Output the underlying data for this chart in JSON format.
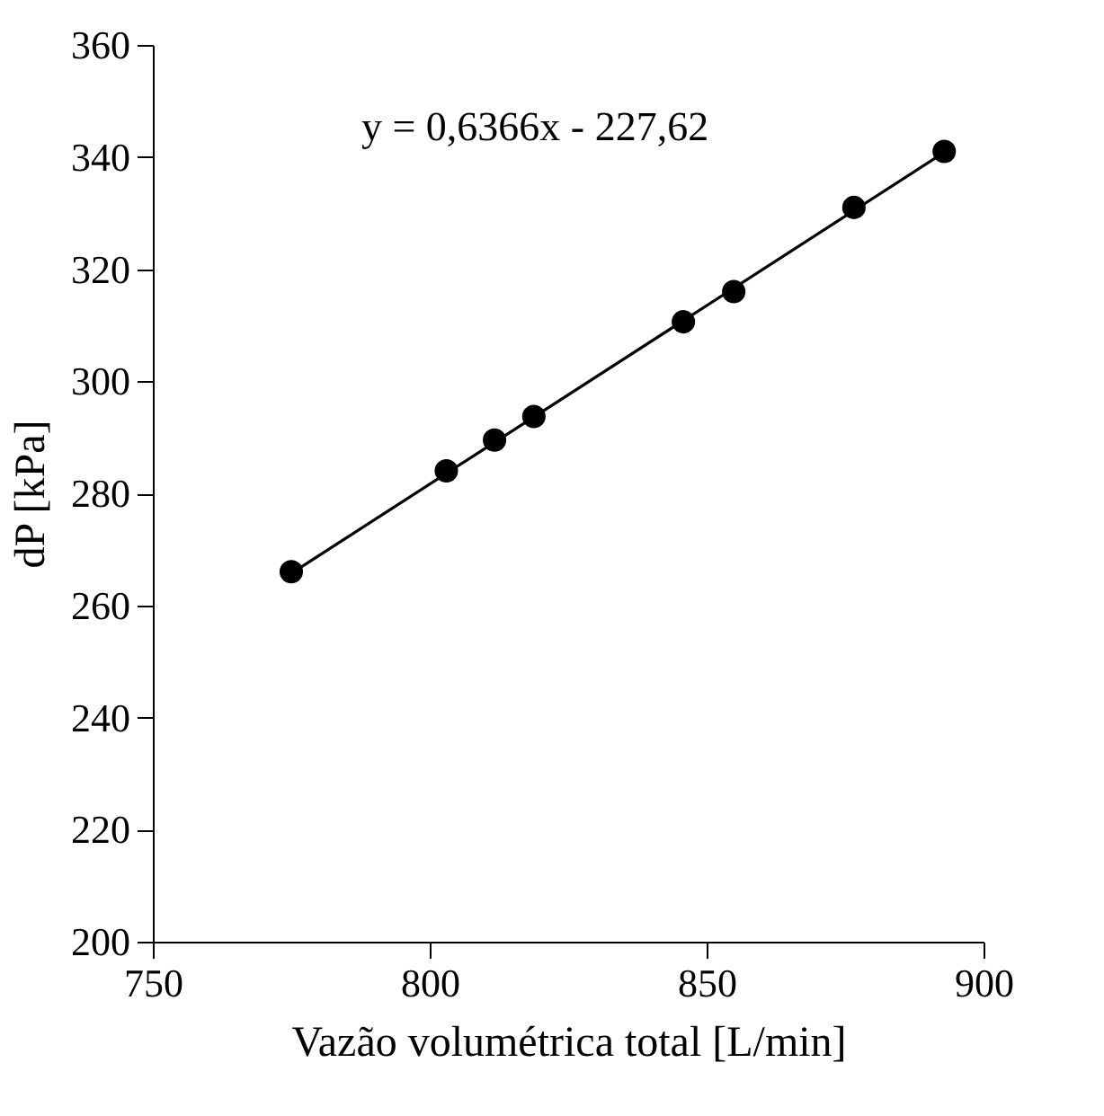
{
  "chart_data": {
    "type": "scatter",
    "xlabel": "Vazão volumétrica total [L/min]",
    "ylabel": "dP [kPa]",
    "xlim": [
      750,
      900
    ],
    "xticks": [
      750,
      800,
      850,
      900
    ],
    "ylim": [
      200,
      360
    ],
    "yticks": [
      200,
      220,
      240,
      260,
      280,
      300,
      320,
      340,
      360
    ],
    "grid": false,
    "annotations": [
      "y = 0,6366x - 227,62"
    ],
    "series": [
      {
        "marker": "circle",
        "color": "#000000",
        "x": [
          775,
          803,
          811.7,
          818.8,
          845.8,
          854.9,
          876.6,
          892.9
        ],
        "values": [
          266,
          284,
          289.5,
          293.7,
          310.6,
          316,
          331,
          341
        ]
      },
      {
        "type": "line",
        "marker": "none",
        "color": "#000000",
        "line_style": "solid",
        "x": [
          775,
          893
        ],
        "values": [
          265.7,
          340.9
        ]
      }
    ]
  }
}
